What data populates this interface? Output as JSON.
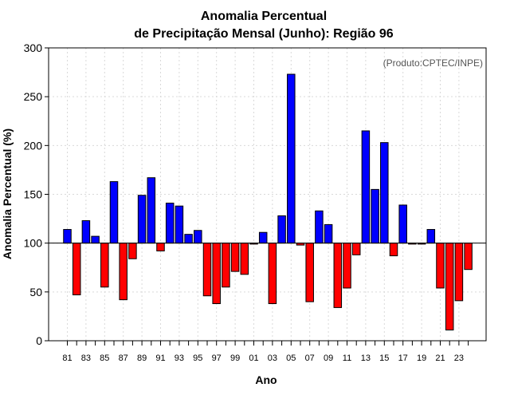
{
  "chart_data": {
    "type": "bar",
    "title_line1": "Anomalia Percentual",
    "title_line2": "de Precipitação Mensal (Junho): Região 96",
    "xlabel": "Ano",
    "ylabel": "Anomalia Percentual (%)",
    "credit": "(Produto:CPTEC/INPE)",
    "ylim": [
      0,
      300
    ],
    "yticks": [
      0,
      50,
      100,
      150,
      200,
      250,
      300
    ],
    "baseline": 100,
    "colors": {
      "above": "#0000ff",
      "below": "#ff0000",
      "edge": "#000000"
    },
    "categories": [
      "1981",
      "1982",
      "1983",
      "1984",
      "1985",
      "1986",
      "1987",
      "1988",
      "1989",
      "1990",
      "1991",
      "1992",
      "1993",
      "1994",
      "1995",
      "1996",
      "1997",
      "1998",
      "1999",
      "2000",
      "2001",
      "2002",
      "2003",
      "2004",
      "2005",
      "2006",
      "2007",
      "2008",
      "2009",
      "2010",
      "2011",
      "2012",
      "2013",
      "2014",
      "2015",
      "2016",
      "2017",
      "2018",
      "2019",
      "2020",
      "2021",
      "2022",
      "2023",
      "2024"
    ],
    "tick_labels": [
      "81",
      "83",
      "85",
      "87",
      "89",
      "91",
      "93",
      "95",
      "97",
      "99",
      "01",
      "03",
      "05",
      "07",
      "09",
      "11",
      "13",
      "15",
      "17",
      "19",
      "21",
      "23"
    ],
    "values": [
      114,
      47,
      123,
      107,
      55,
      163,
      42,
      84,
      149,
      167,
      92,
      141,
      138,
      109,
      113,
      46,
      38,
      55,
      71,
      68,
      99,
      111,
      38,
      128,
      273,
      98,
      40,
      133,
      119,
      34,
      54,
      88,
      215,
      155,
      203,
      87,
      139,
      99,
      99,
      114,
      54,
      11,
      41,
      73
    ]
  }
}
